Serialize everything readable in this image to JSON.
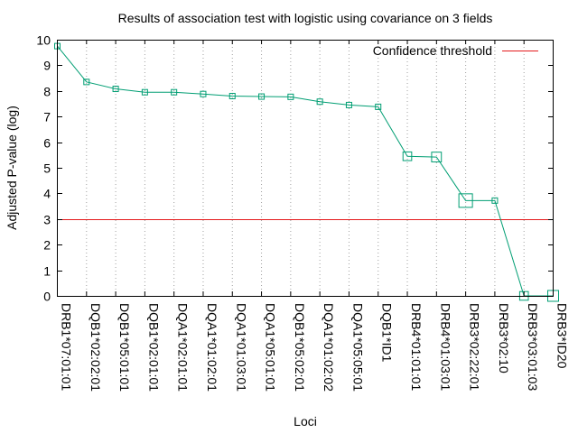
{
  "chart_data": {
    "type": "line",
    "title": "Results of association test with logistic using covariance on 3 fields",
    "xlabel": "Loci",
    "ylabel": "Adjusted P-value (log)",
    "ylim": [
      0,
      10
    ],
    "y_ticks": [
      0,
      1,
      2,
      3,
      4,
      5,
      6,
      7,
      8,
      9,
      10
    ],
    "grid": {
      "x": true,
      "y": false,
      "style": "dotted"
    },
    "legend_position": "top-right",
    "categories": [
      "DRB1*07:01:01",
      "DQB1*02:02:01",
      "DQB1*05:01:01",
      "DQB1*02:01:01",
      "DQA1*02:01:01",
      "DQA1*01:02:01",
      "DQA1*01:03:01",
      "DQA1*05:01:01",
      "DQB1*05:02:01",
      "DQA1*01:02:02",
      "DQA1*05:05:01",
      "DQB1*ID1",
      "DRB4*01:01:01",
      "DRB4*01:03:01",
      "DRB3*02:22:01",
      "DRB3*02:10",
      "DRB3*03:01:03",
      "DRB3*ID20"
    ],
    "series": [
      {
        "values": [
          9.75,
          8.35,
          8.08,
          7.95,
          7.95,
          7.88,
          7.8,
          7.78,
          7.77,
          7.58,
          7.45,
          7.38,
          5.45,
          5.42,
          3.72,
          3.72,
          0.0,
          0.0
        ],
        "marker_scale": [
          1,
          1,
          1,
          1,
          1,
          1,
          1,
          1,
          1,
          1,
          1,
          1,
          1.6,
          1.8,
          2.5,
          1,
          1.6,
          2.0
        ],
        "color": "#009e73"
      }
    ],
    "threshold": {
      "name": "Confidence threshold",
      "value": 3.0,
      "color": "#e41a1c"
    }
  }
}
